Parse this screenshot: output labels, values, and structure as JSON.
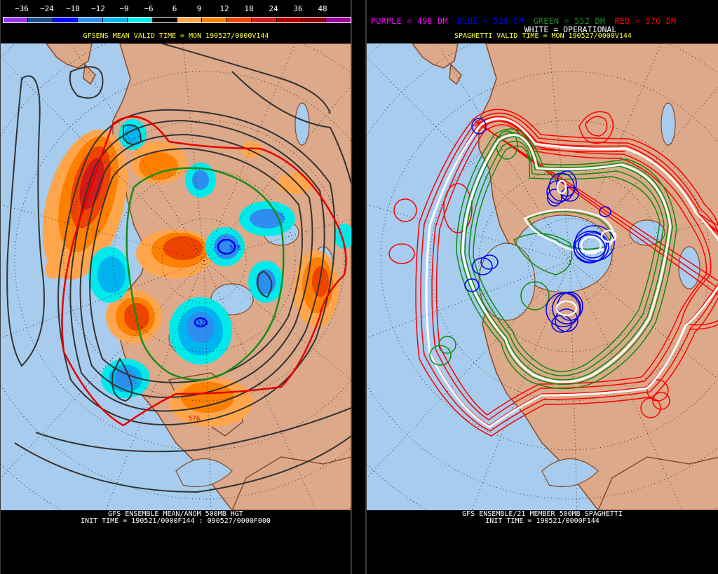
{
  "left_panel": {
    "colorbar": {
      "labels": [
        "−36",
        "−24",
        "−18",
        "−12",
        "−9",
        "−6",
        "6",
        "9",
        "12",
        "18",
        "24",
        "36",
        "48"
      ],
      "colors": [
        "#9933ee",
        "#1a4e8c",
        "#0a0aff",
        "#2e8ef0",
        "#00b4f0",
        "#00eaea",
        "#000000",
        "#ffa64d",
        "#ff8000",
        "#ee4400",
        "#d41a1a",
        "#b00000",
        "#8c0000",
        "#990099"
      ]
    },
    "valid_time": "GFSENS MEAN VALID TIME = MON 190527/0000V144",
    "contour_label": "528",
    "contour_label_red": "576",
    "footer": {
      "title": "GFS ENSEMBLE MEAN/ANOM 500MB HGT",
      "init_time": "INIT TIME = 190521/0000F144 : 090527/0000F000"
    }
  },
  "right_panel": {
    "legend": {
      "purple": {
        "text": "PURPLE = 498 DM",
        "color": "#ff00ff"
      },
      "blue": {
        "text": "BLUE = 528 DM",
        "color": "#0000ff"
      },
      "green": {
        "text": "GREEN = 552 DM",
        "color": "#228b22"
      },
      "red": {
        "text": "RED = 576 DM",
        "color": "#ff0000"
      }
    },
    "operational": "WHITE = OPERATIONAL",
    "valid_time": "SPAGHETTI VALID TIME = MON 190527/0000V144",
    "footer": {
      "title": "GFS ENSEMBLE/21 MEMBER 500MB SPAGHETTI",
      "init_time": "INIT TIME = 190521/0000F144"
    }
  },
  "colors": {
    "ocean": "#a7ccee",
    "land": "#dca98a",
    "border": "#8b4a26",
    "background": "#000000",
    "title_yellow": "#ffff33"
  }
}
